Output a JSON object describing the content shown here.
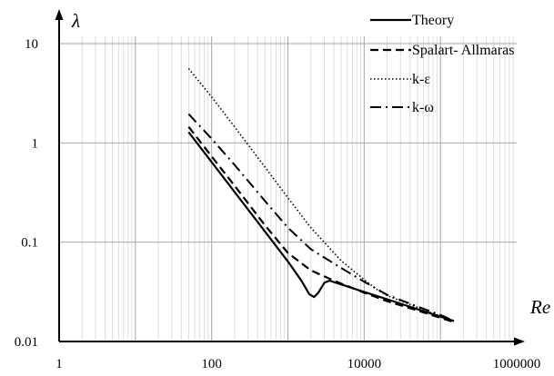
{
  "chart_data": {
    "type": "line",
    "title": "",
    "xlabel": "Re",
    "ylabel": "λ",
    "xscale": "log",
    "yscale": "log",
    "xlim": [
      1,
      1000000
    ],
    "ylim": [
      0.01,
      10
    ],
    "x_tick_labels": [
      "1",
      "100",
      "10000",
      "1000000"
    ],
    "x_tick_values": [
      1,
      100,
      10000,
      1000000
    ],
    "y_tick_labels": [
      "0.01",
      "0.1",
      "1",
      "10"
    ],
    "y_tick_values": [
      0.01,
      0.1,
      1,
      10
    ],
    "grid": true,
    "legend_position": "top-right",
    "series": [
      {
        "name": "Theory",
        "style": "solid",
        "points": [
          [
            50,
            1.28
          ],
          [
            100,
            0.64
          ],
          [
            200,
            0.32
          ],
          [
            500,
            0.128
          ],
          [
            1000,
            0.064
          ],
          [
            1500,
            0.041
          ],
          [
            1900,
            0.03
          ],
          [
            2200,
            0.028
          ],
          [
            2500,
            0.031
          ],
          [
            3000,
            0.039
          ],
          [
            3500,
            0.041
          ],
          [
            5000,
            0.0375
          ],
          [
            10000,
            0.0316
          ],
          [
            20000,
            0.0266
          ],
          [
            50000,
            0.0211
          ],
          [
            100000,
            0.0178
          ],
          [
            150000,
            0.0161
          ]
        ]
      },
      {
        "name": "Spalart- Allmaras",
        "style": "dashed",
        "points": [
          [
            50,
            1.45
          ],
          [
            100,
            0.73
          ],
          [
            200,
            0.37
          ],
          [
            500,
            0.148
          ],
          [
            1000,
            0.078
          ],
          [
            2000,
            0.052
          ],
          [
            4000,
            0.041
          ],
          [
            10000,
            0.031
          ],
          [
            20000,
            0.0255
          ],
          [
            50000,
            0.0205
          ],
          [
            100000,
            0.0173
          ],
          [
            150000,
            0.0157
          ]
        ]
      },
      {
        "name": "k-ε",
        "style": "dotted",
        "points": [
          [
            50,
            5.6
          ],
          [
            100,
            2.9
          ],
          [
            200,
            1.45
          ],
          [
            500,
            0.57
          ],
          [
            1000,
            0.28
          ],
          [
            2000,
            0.14
          ],
          [
            5000,
            0.065
          ],
          [
            10000,
            0.042
          ],
          [
            15000,
            0.033
          ],
          [
            20000,
            0.029
          ],
          [
            50000,
            0.022
          ],
          [
            100000,
            0.018
          ],
          [
            150000,
            0.016
          ]
        ]
      },
      {
        "name": "k-ω",
        "style": "dashdot",
        "points": [
          [
            50,
            1.95
          ],
          [
            100,
            1.1
          ],
          [
            200,
            0.6
          ],
          [
            500,
            0.26
          ],
          [
            1000,
            0.14
          ],
          [
            2000,
            0.085
          ],
          [
            5000,
            0.055
          ],
          [
            10000,
            0.04
          ],
          [
            20000,
            0.0295
          ],
          [
            50000,
            0.0225
          ],
          [
            100000,
            0.0185
          ],
          [
            150000,
            0.0162
          ]
        ]
      }
    ]
  }
}
